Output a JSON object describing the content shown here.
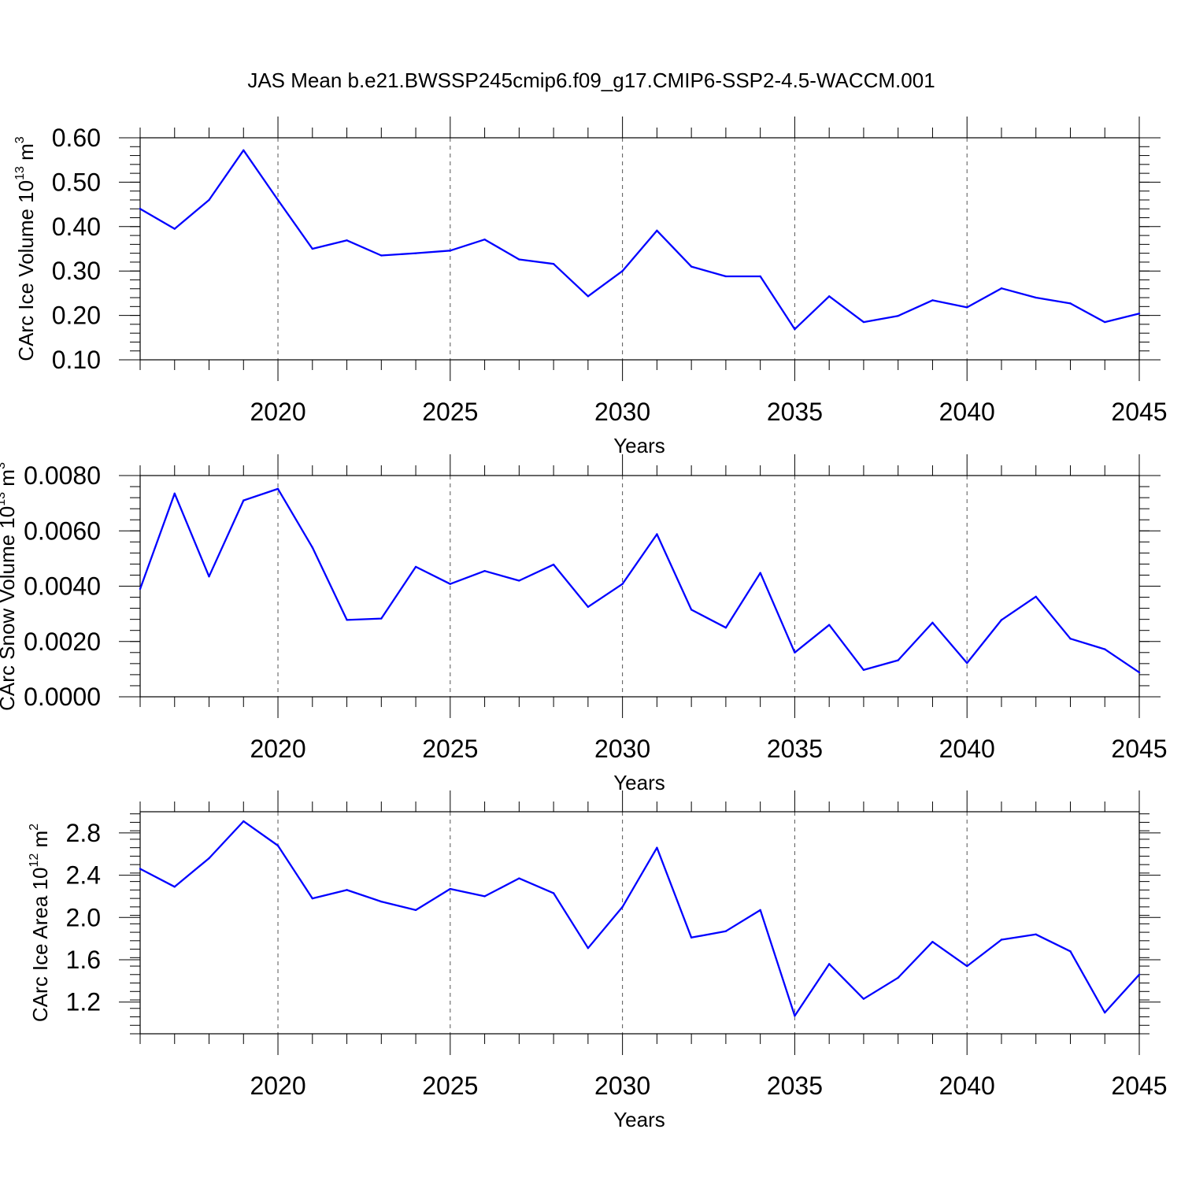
{
  "colors": {
    "line": "#0000ff",
    "axis": "#000000",
    "grid": "#555555"
  },
  "chart_data": [
    {
      "type": "line",
      "title": "JAS Mean b.e21.BWSSP245cmip6.f09_g17.CMIP6-SSP2-4.5-WACCM.001",
      "ylabel_main": "CArc Ice Volume 10",
      "ylabel_sup": "13",
      "ylabel_tail": " m",
      "ylabel_sup2": "3",
      "xlabel": "Years",
      "xlim": [
        2016,
        2045
      ],
      "ylim": [
        0.1,
        0.6
      ],
      "xticks": [
        2020,
        2025,
        2030,
        2035,
        2040,
        2045
      ],
      "yticks": [
        0.1,
        0.2,
        0.3,
        0.4,
        0.5,
        0.6
      ],
      "ytick_labels": [
        "0.10",
        "0.20",
        "0.30",
        "0.40",
        "0.50",
        "0.60"
      ],
      "x": [
        2016,
        2017,
        2018,
        2019,
        2020,
        2021,
        2022,
        2023,
        2024,
        2025,
        2026,
        2027,
        2028,
        2029,
        2030,
        2031,
        2032,
        2033,
        2034,
        2035,
        2036,
        2037,
        2038,
        2039,
        2040,
        2041,
        2042,
        2043,
        2044,
        2045
      ],
      "values": [
        0.44,
        0.395,
        0.46,
        0.572,
        0.46,
        0.35,
        0.369,
        0.335,
        0.34,
        0.346,
        0.371,
        0.326,
        0.316,
        0.243,
        0.3,
        0.391,
        0.31,
        0.288,
        0.288,
        0.169,
        0.243,
        0.185,
        0.199,
        0.234,
        0.218,
        0.261,
        0.24,
        0.227,
        0.185,
        0.204
      ]
    },
    {
      "type": "line",
      "ylabel_main": "CArc Snow Volume 10",
      "ylabel_sup": "13",
      "ylabel_tail": " m",
      "ylabel_sup2": "3",
      "xlabel": "Years",
      "xlim": [
        2016,
        2045
      ],
      "ylim": [
        0.0,
        0.008
      ],
      "xticks": [
        2020,
        2025,
        2030,
        2035,
        2040,
        2045
      ],
      "yticks": [
        0.0,
        0.002,
        0.004,
        0.006,
        0.008
      ],
      "ytick_labels": [
        "0.0000",
        "0.0020",
        "0.0040",
        "0.0060",
        "0.0080"
      ],
      "x": [
        2016,
        2017,
        2018,
        2019,
        2020,
        2021,
        2022,
        2023,
        2024,
        2025,
        2026,
        2027,
        2028,
        2029,
        2030,
        2031,
        2032,
        2033,
        2034,
        2035,
        2036,
        2037,
        2038,
        2039,
        2040,
        2041,
        2042,
        2043,
        2044,
        2045
      ],
      "values": [
        0.0039,
        0.00735,
        0.00435,
        0.0071,
        0.00752,
        0.0054,
        0.00278,
        0.00283,
        0.0047,
        0.00408,
        0.00455,
        0.0042,
        0.00478,
        0.00325,
        0.00408,
        0.00588,
        0.00315,
        0.0025,
        0.00448,
        0.0016,
        0.0026,
        0.00097,
        0.00132,
        0.00268,
        0.00122,
        0.00278,
        0.00362,
        0.0021,
        0.00172,
        0.00088
      ]
    },
    {
      "type": "line",
      "ylabel_main": "CArc Ice Area 10",
      "ylabel_sup": "12",
      "ylabel_tail": " m",
      "ylabel_sup2": "2",
      "xlabel": "Years",
      "xlim": [
        2016,
        2045
      ],
      "ylim": [
        0.9,
        3.0
      ],
      "xticks": [
        2020,
        2025,
        2030,
        2035,
        2040,
        2045
      ],
      "yticks": [
        1.2,
        1.6,
        2.0,
        2.4,
        2.8
      ],
      "ytick_labels": [
        "1.2",
        "1.6",
        "2.0",
        "2.4",
        "2.8"
      ],
      "x": [
        2016,
        2017,
        2018,
        2019,
        2020,
        2021,
        2022,
        2023,
        2024,
        2025,
        2026,
        2027,
        2028,
        2029,
        2030,
        2031,
        2032,
        2033,
        2034,
        2035,
        2036,
        2037,
        2038,
        2039,
        2040,
        2041,
        2042,
        2043,
        2044,
        2045
      ],
      "values": [
        2.46,
        2.29,
        2.56,
        2.91,
        2.68,
        2.18,
        2.26,
        2.15,
        2.07,
        2.27,
        2.2,
        2.37,
        2.23,
        1.71,
        2.1,
        2.66,
        1.81,
        1.87,
        2.07,
        1.07,
        1.56,
        1.23,
        1.43,
        1.77,
        1.54,
        1.79,
        1.84,
        1.68,
        1.1,
        1.46
      ]
    }
  ]
}
